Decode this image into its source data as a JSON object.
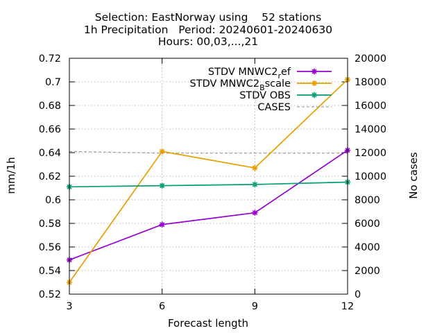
{
  "chart_data": {
    "type": "line",
    "title_lines": [
      "Selection: EastNorway using    52 stations",
      "1h Precipitation   Period: 20240601-20240630",
      "Hours: 00,03,...,21"
    ],
    "xlabel": "Forecast length",
    "ylabel": "mm/1h",
    "y2label": "No cases",
    "x": [
      3,
      6,
      9,
      12
    ],
    "xticks": [
      "3",
      "6",
      "9",
      "12"
    ],
    "xlim": [
      3,
      12
    ],
    "ylim": [
      0.52,
      0.72
    ],
    "yticks": [
      "0.52",
      "0.54",
      "0.56",
      "0.58",
      "0.6",
      "0.62",
      "0.64",
      "0.66",
      "0.68",
      "0.7",
      "0.72"
    ],
    "y2lim": [
      0,
      20000
    ],
    "y2ticks": [
      "0",
      "2000",
      "4000",
      "6000",
      "8000",
      "10000",
      "12000",
      "14000",
      "16000",
      "18000",
      "20000"
    ],
    "grid": true,
    "legend_position": "top-right",
    "series": [
      {
        "name": "STDV MNWC2_ref",
        "legend_main": "STDV MNWC2",
        "legend_sub": "r",
        "legend_tail": "ef",
        "color": "#9400d3",
        "axis": "left",
        "marker": "star",
        "dashed": false,
        "values": [
          0.549,
          0.579,
          0.589,
          0.642
        ]
      },
      {
        "name": "STDV MNWC2_Bscale",
        "legend_main": "STDV MNWC2",
        "legend_sub": "B",
        "legend_tail": "scale",
        "color": "#e69f00",
        "axis": "left",
        "marker": "star",
        "dashed": false,
        "values": [
          0.53,
          0.641,
          0.627,
          0.702
        ]
      },
      {
        "name": "STDV OBS",
        "legend_main": "STDV OBS",
        "legend_sub": "",
        "legend_tail": "",
        "color": "#009e73",
        "axis": "left",
        "marker": "star",
        "dashed": false,
        "values": [
          0.611,
          0.612,
          0.613,
          0.615
        ]
      },
      {
        "name": "CASES",
        "legend_main": "CASES",
        "legend_sub": "",
        "legend_tail": "",
        "color": "#a0a0a0",
        "axis": "right",
        "marker": "none",
        "dashed": true,
        "values": [
          12100,
          11950,
          11950,
          11950
        ]
      }
    ]
  }
}
